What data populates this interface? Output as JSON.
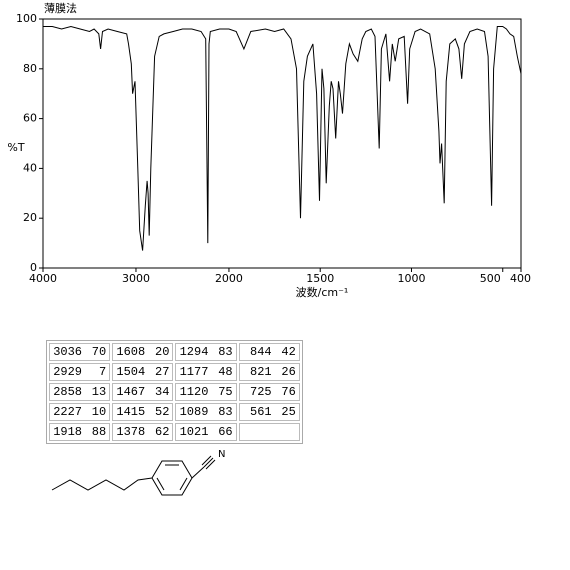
{
  "chart_data": {
    "type": "line",
    "title": "薄膜法",
    "x_label": "波数/cm⁻¹",
    "y_label": "%T",
    "x": [
      4000,
      3900,
      3800,
      3700,
      3600,
      3500,
      3450,
      3400,
      3380,
      3360,
      3300,
      3200,
      3100,
      3080,
      3050,
      3036,
      3010,
      2980,
      2960,
      2929,
      2900,
      2880,
      2870,
      2858,
      2840,
      2800,
      2750,
      2700,
      2600,
      2500,
      2400,
      2300,
      2250,
      2227,
      2215,
      2200,
      2100,
      2000,
      1960,
      1918,
      1880,
      1800,
      1750,
      1700,
      1660,
      1630,
      1608,
      1590,
      1570,
      1540,
      1520,
      1504,
      1490,
      1480,
      1467,
      1450,
      1440,
      1430,
      1415,
      1400,
      1390,
      1378,
      1360,
      1340,
      1320,
      1294,
      1270,
      1250,
      1220,
      1200,
      1177,
      1165,
      1140,
      1120,
      1105,
      1089,
      1070,
      1040,
      1021,
      1010,
      980,
      950,
      900,
      870,
      850,
      844,
      835,
      821,
      810,
      790,
      760,
      740,
      725,
      710,
      680,
      640,
      600,
      580,
      561,
      550,
      530,
      500,
      480,
      460,
      440,
      420,
      400
    ],
    "values": [
      97,
      97,
      96,
      97,
      96,
      95,
      96,
      94,
      88,
      95,
      96,
      95,
      94,
      90,
      82,
      70,
      75,
      40,
      15,
      7,
      25,
      35,
      30,
      13,
      40,
      85,
      93,
      94,
      95,
      96,
      96,
      95,
      92,
      10,
      90,
      95,
      96,
      96,
      95,
      88,
      95,
      96,
      95,
      96,
      92,
      80,
      20,
      75,
      85,
      90,
      70,
      27,
      80,
      72,
      34,
      65,
      75,
      72,
      52,
      75,
      70,
      62,
      82,
      90,
      86,
      83,
      92,
      95,
      96,
      93,
      48,
      88,
      94,
      75,
      90,
      83,
      92,
      93,
      66,
      88,
      95,
      96,
      94,
      80,
      55,
      42,
      50,
      26,
      75,
      90,
      92,
      88,
      76,
      90,
      95,
      96,
      95,
      85,
      25,
      80,
      97,
      97,
      96,
      94,
      93,
      85,
      78
    ],
    "color": "#000000",
    "xlim": [
      4000,
      400
    ],
    "x_scale_change": 2000,
    "xticks": [
      4000,
      3000,
      2000,
      1500,
      1000,
      500,
      400
    ],
    "ylim": [
      0,
      100
    ],
    "yticks": [
      0,
      20,
      40,
      60,
      80,
      100
    ],
    "grid": false
  },
  "peak_table": {
    "rows": [
      [
        3036,
        70,
        1608,
        20,
        1294,
        83,
        844,
        42
      ],
      [
        2929,
        7,
        1504,
        27,
        1177,
        48,
        821,
        26
      ],
      [
        2858,
        13,
        1467,
        34,
        1120,
        75,
        725,
        76
      ],
      [
        2227,
        10,
        1415,
        52,
        1089,
        83,
        561,
        25
      ],
      [
        1918,
        88,
        1378,
        62,
        1021,
        66
      ]
    ]
  },
  "structure": {
    "atom_label": "N"
  }
}
